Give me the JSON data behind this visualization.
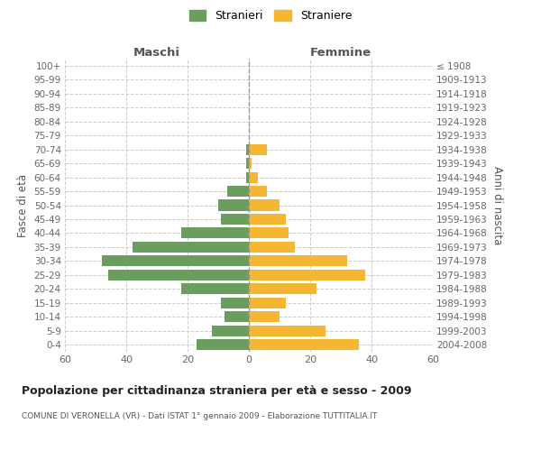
{
  "age_groups": [
    "0-4",
    "5-9",
    "10-14",
    "15-19",
    "20-24",
    "25-29",
    "30-34",
    "35-39",
    "40-44",
    "45-49",
    "50-54",
    "55-59",
    "60-64",
    "65-69",
    "70-74",
    "75-79",
    "80-84",
    "85-89",
    "90-94",
    "95-99",
    "100+"
  ],
  "birth_years": [
    "2004-2008",
    "1999-2003",
    "1994-1998",
    "1989-1993",
    "1984-1988",
    "1979-1983",
    "1974-1978",
    "1969-1973",
    "1964-1968",
    "1959-1963",
    "1954-1958",
    "1949-1953",
    "1944-1948",
    "1939-1943",
    "1934-1938",
    "1929-1933",
    "1924-1928",
    "1919-1923",
    "1914-1918",
    "1909-1913",
    "≤ 1908"
  ],
  "males": [
    17,
    12,
    8,
    9,
    22,
    46,
    48,
    38,
    22,
    9,
    10,
    7,
    1,
    1,
    1,
    0,
    0,
    0,
    0,
    0,
    0
  ],
  "females": [
    36,
    25,
    10,
    12,
    22,
    38,
    32,
    15,
    13,
    12,
    10,
    6,
    3,
    1,
    6,
    0,
    0,
    0,
    0,
    0,
    0
  ],
  "male_color": "#6a9e5f",
  "female_color": "#f5b731",
  "male_label": "Stranieri",
  "female_label": "Straniere",
  "title": "Popolazione per cittadinanza straniera per età e sesso - 2009",
  "subtitle": "COMUNE DI VERONELLA (VR) - Dati ISTAT 1° gennaio 2009 - Elaborazione TUTTITALIA.IT",
  "xlabel_left": "Maschi",
  "xlabel_right": "Femmine",
  "ylabel_left": "Fasce di età",
  "ylabel_right": "Anni di nascita",
  "xlim": 60,
  "background_color": "#ffffff",
  "grid_color": "#cccccc"
}
